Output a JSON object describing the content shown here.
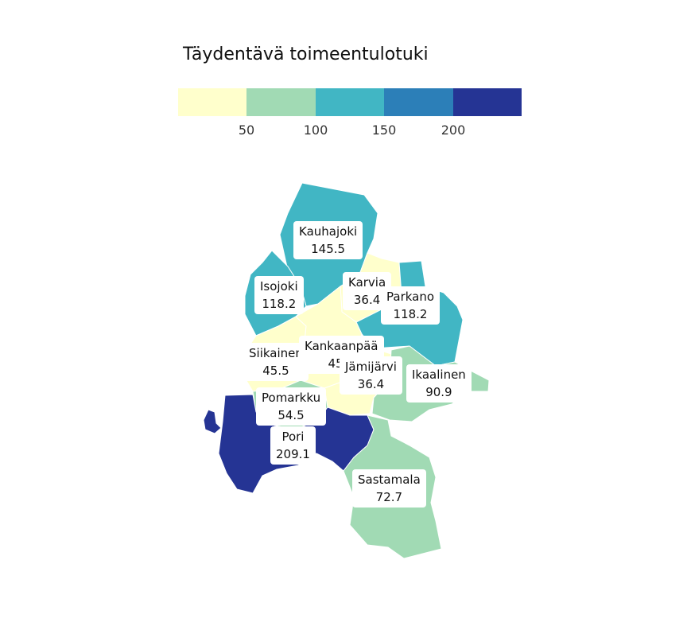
{
  "title": "Täydentävä toimeentulotuki",
  "legend": {
    "bins": [
      {
        "color": "#ffffcc"
      },
      {
        "color": "#a1dab4"
      },
      {
        "color": "#41b6c4"
      },
      {
        "color": "#2c7fb8"
      },
      {
        "color": "#253494"
      }
    ],
    "ticks": [
      "50",
      "100",
      "150",
      "200"
    ]
  },
  "municipalities": [
    {
      "name": "Kauhajoki",
      "value": "145.5",
      "color": "#41b6c4"
    },
    {
      "name": "Isojoki",
      "value": "118.2",
      "color": "#41b6c4"
    },
    {
      "name": "Karvia",
      "value": "36.4",
      "color": "#ffffcc"
    },
    {
      "name": "Parkano",
      "value": "118.2",
      "color": "#41b6c4"
    },
    {
      "name": "Siikainen",
      "value": "45.5",
      "color": "#ffffcc"
    },
    {
      "name": "Kankaanpää",
      "value": "45.5",
      "color": "#ffffcc"
    },
    {
      "name": "Jämijärvi",
      "value": "36.4",
      "color": "#ffffcc"
    },
    {
      "name": "Ikaalinen",
      "value": "90.9",
      "color": "#a1dab4"
    },
    {
      "name": "Pomarkku",
      "value": "54.5",
      "color": "#a1dab4"
    },
    {
      "name": "Pori",
      "value": "209.1",
      "color": "#253494"
    },
    {
      "name": "Sastamala",
      "value": "72.7",
      "color": "#a1dab4"
    }
  ]
}
